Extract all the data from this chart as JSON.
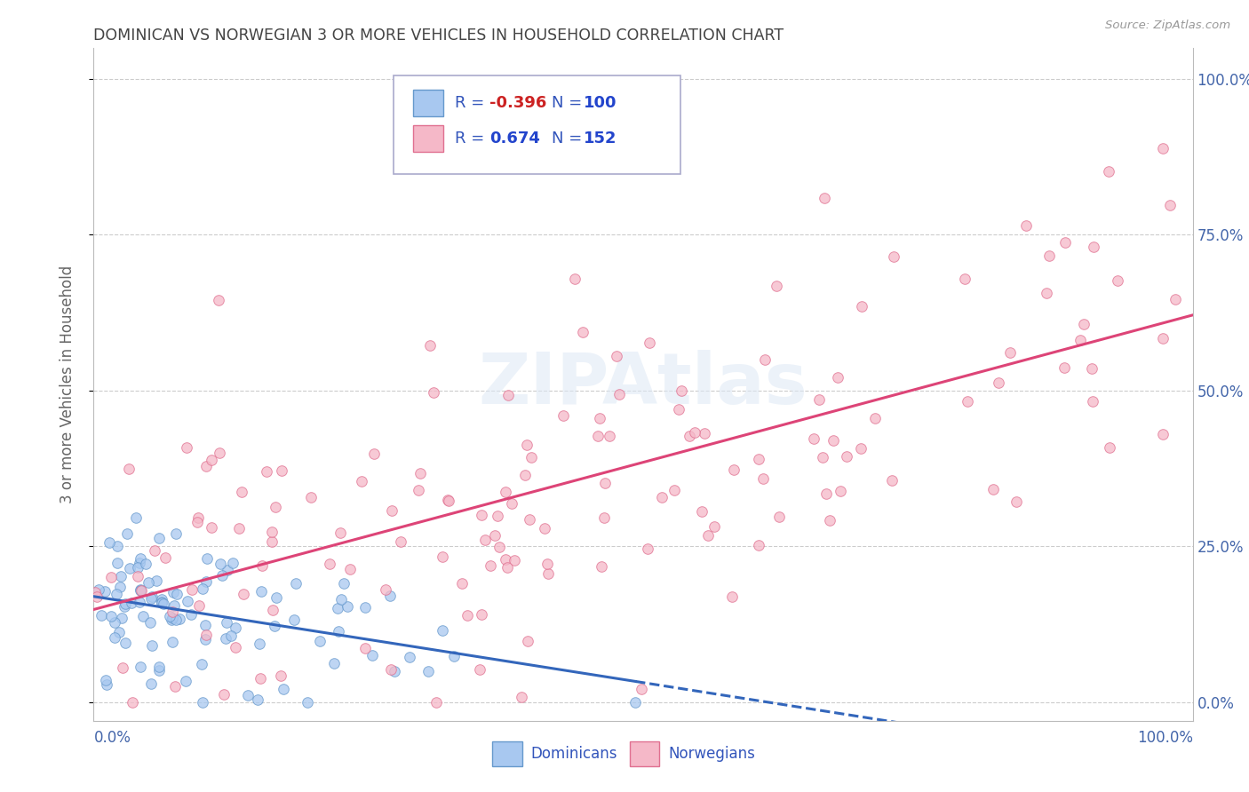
{
  "title": "DOMINICAN VS NORWEGIAN 3 OR MORE VEHICLES IN HOUSEHOLD CORRELATION CHART",
  "source": "Source: ZipAtlas.com",
  "ylabel": "3 or more Vehicles in Household",
  "ytick_values": [
    0.0,
    25.0,
    50.0,
    75.0,
    100.0
  ],
  "xlim": [
    0.0,
    100.0
  ],
  "ylim": [
    -3.0,
    105.0
  ],
  "dominican_color": "#a8c8f0",
  "dominican_edge": "#6699cc",
  "norwegian_color": "#f5b8c8",
  "norwegian_edge": "#e07090",
  "dominican_line_color": "#3366bb",
  "norwegian_line_color": "#dd4477",
  "dominican_R": -0.396,
  "dominican_N": 100,
  "norwegian_R": 0.674,
  "norwegian_N": 152,
  "watermark": "ZIPAtlas",
  "legend_label_1": "Dominicans",
  "legend_label_2": "Norwegians",
  "background_color": "#ffffff",
  "grid_color": "#cccccc",
  "title_color": "#444444",
  "axis_label_color": "#4466aa",
  "legend_R_color": "#3355bb",
  "dom_line_y_intercept": 21.0,
  "dom_line_slope": -0.18,
  "nor_line_y_intercept": 20.0,
  "nor_line_slope": 0.46,
  "dominican_seed": 42,
  "norwegian_seed": 77
}
